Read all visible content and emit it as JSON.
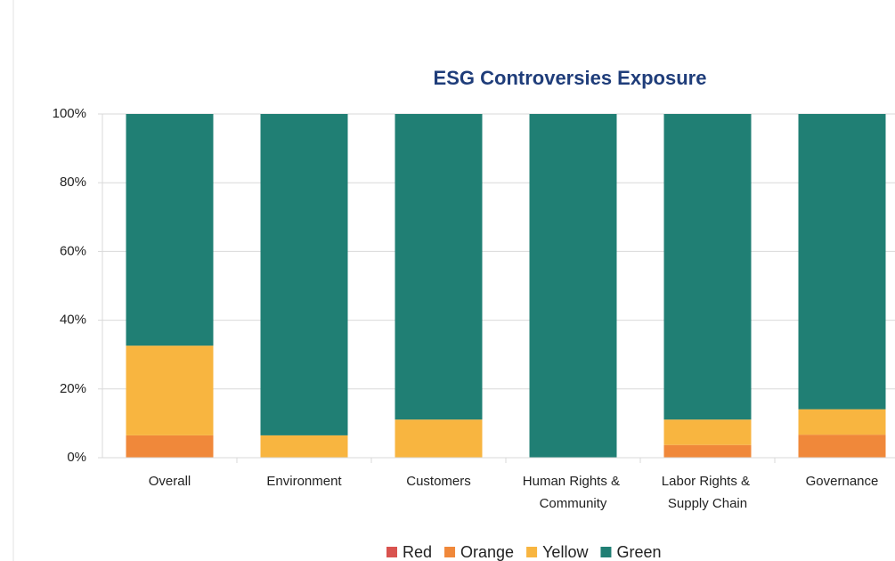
{
  "chart_data": {
    "type": "stacked_bar",
    "title": "ESG Controversies Exposure",
    "categories": [
      "Overall",
      "Environment",
      "Customers",
      "Human Rights & Community",
      "Labor Rights & Supply Chain",
      "Governance"
    ],
    "series": [
      {
        "name": "Red",
        "color": "#d9534f",
        "values": [
          0,
          0,
          0,
          0,
          0,
          0
        ]
      },
      {
        "name": "Orange",
        "color": "#f0883a",
        "values": [
          6.5,
          0,
          0,
          0,
          3.7,
          6.7
        ]
      },
      {
        "name": "Yellow",
        "color": "#f8b540",
        "values": [
          26.1,
          6.5,
          11.1,
          0,
          7.4,
          7.4
        ]
      },
      {
        "name": "Green",
        "color": "#207f74",
        "values": [
          67.4,
          93.5,
          88.9,
          100,
          88.9,
          85.9
        ]
      }
    ],
    "ylim": [
      0,
      100
    ],
    "yticks": [
      {
        "value": 0,
        "label": "0%"
      },
      {
        "value": 20,
        "label": "20%"
      },
      {
        "value": 40,
        "label": "40%"
      },
      {
        "value": 60,
        "label": "60%"
      },
      {
        "value": 80,
        "label": "80%"
      },
      {
        "value": 100,
        "label": "100%"
      }
    ],
    "grid": true,
    "legend": "bottom"
  }
}
